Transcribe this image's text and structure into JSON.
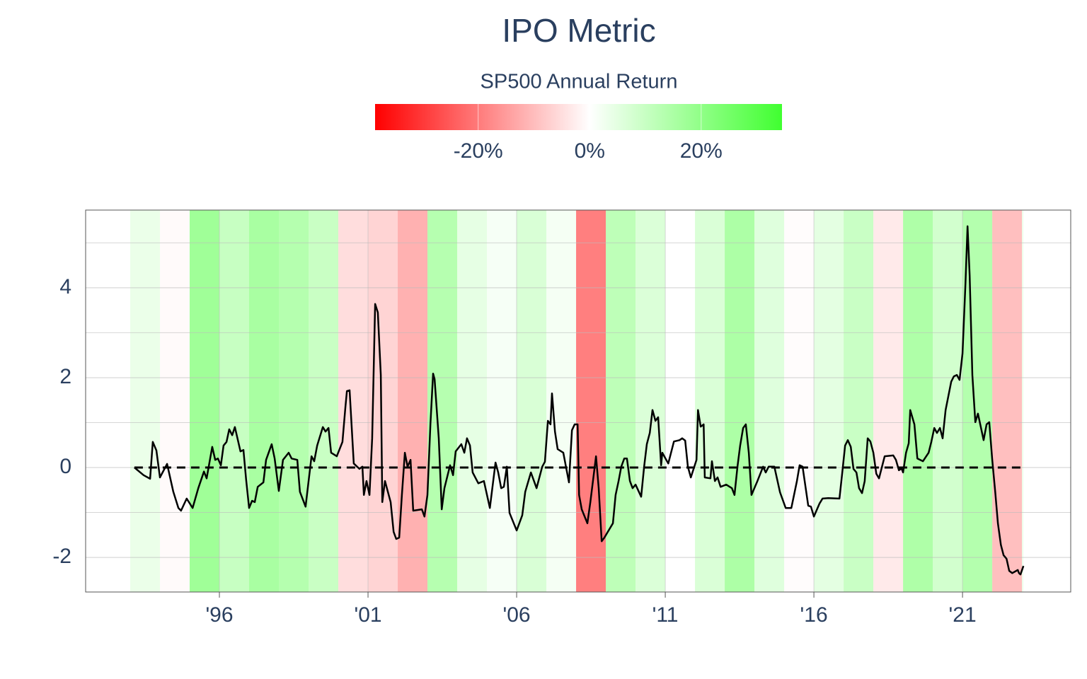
{
  "chart_data": {
    "type": "line",
    "title": "IPO Metric",
    "xlim": [
      1991.5,
      2024.64
    ],
    "xticks": [
      {
        "value": 1996,
        "label": "'96"
      },
      {
        "value": 2001,
        "label": "'01"
      },
      {
        "value": 2006,
        "label": "'06"
      },
      {
        "value": 2011,
        "label": "'11"
      },
      {
        "value": 2016,
        "label": "'16"
      },
      {
        "value": 2021,
        "label": "'21"
      }
    ],
    "ylim": [
      -2.77,
      5.73
    ],
    "yticks": [
      -2,
      0,
      2,
      4
    ],
    "y_minor_grid": [
      -1,
      1,
      3,
      5
    ],
    "grid": true,
    "hline": 0,
    "x": [
      1993.14,
      1993.45,
      1993.67,
      1993.76,
      1993.88,
      1994.0,
      1994.24,
      1994.45,
      1994.62,
      1994.71,
      1994.9,
      1995.1,
      1995.29,
      1995.48,
      1995.57,
      1995.76,
      1995.86,
      1995.95,
      1996.05,
      1996.14,
      1996.24,
      1996.33,
      1996.43,
      1996.52,
      1996.71,
      1996.81,
      1996.9,
      1997.0,
      1997.1,
      1997.19,
      1997.29,
      1997.48,
      1997.57,
      1997.76,
      1997.86,
      1998.0,
      1998.14,
      1998.33,
      1998.43,
      1998.62,
      1998.71,
      1998.9,
      1999.1,
      1999.19,
      1999.29,
      1999.48,
      1999.57,
      1999.67,
      1999.76,
      1999.95,
      2000.14,
      2000.24,
      2000.29,
      2000.38,
      2000.52,
      2000.71,
      2000.81,
      2000.86,
      2000.95,
      2001.05,
      2001.14,
      2001.24,
      2001.33,
      2001.43,
      2001.48,
      2001.57,
      2001.76,
      2001.86,
      2001.95,
      2002.05,
      2002.14,
      2002.24,
      2002.33,
      2002.43,
      2002.52,
      2002.81,
      2002.9,
      2003.0,
      2003.1,
      2003.19,
      2003.24,
      2003.38,
      2003.48,
      2003.57,
      2003.76,
      2003.86,
      2003.95,
      2004.14,
      2004.24,
      2004.33,
      2004.43,
      2004.52,
      2004.71,
      2004.9,
      2005.1,
      2005.29,
      2005.38,
      2005.48,
      2005.57,
      2005.67,
      2005.76,
      2006.0,
      2006.19,
      2006.29,
      2006.48,
      2006.67,
      2006.86,
      2006.95,
      2007.05,
      2007.14,
      2007.19,
      2007.29,
      2007.38,
      2007.57,
      2007.67,
      2007.76,
      2007.86,
      2007.95,
      2008.05,
      2008.1,
      2008.19,
      2008.38,
      2008.48,
      2008.67,
      2008.76,
      2008.86,
      2008.95,
      2009.24,
      2009.33,
      2009.43,
      2009.52,
      2009.62,
      2009.71,
      2009.81,
      2009.9,
      2010.0,
      2010.19,
      2010.29,
      2010.38,
      2010.48,
      2010.57,
      2010.67,
      2010.76,
      2010.86,
      2010.9,
      2011.1,
      2011.29,
      2011.48,
      2011.57,
      2011.67,
      2011.76,
      2011.86,
      2012.05,
      2012.1,
      2012.19,
      2012.29,
      2012.33,
      2012.52,
      2012.57,
      2012.67,
      2012.76,
      2012.86,
      2013.05,
      2013.24,
      2013.33,
      2013.43,
      2013.52,
      2013.62,
      2013.71,
      2013.81,
      2013.9,
      2014.1,
      2014.29,
      2014.38,
      2014.48,
      2014.67,
      2014.86,
      2015.05,
      2015.24,
      2015.43,
      2015.52,
      2015.62,
      2015.81,
      2015.9,
      2016.0,
      2016.19,
      2016.29,
      2016.48,
      2016.86,
      2016.95,
      2017.05,
      2017.14,
      2017.24,
      2017.33,
      2017.43,
      2017.52,
      2017.62,
      2017.71,
      2017.81,
      2017.9,
      2018.0,
      2018.1,
      2018.19,
      2018.38,
      2018.67,
      2018.76,
      2018.86,
      2018.95,
      2019.0,
      2019.1,
      2019.19,
      2019.24,
      2019.38,
      2019.48,
      2019.67,
      2019.86,
      2019.95,
      2020.05,
      2020.14,
      2020.24,
      2020.33,
      2020.43,
      2020.62,
      2020.71,
      2020.81,
      2020.9,
      2021.0,
      2021.1,
      2021.17,
      2021.24,
      2021.33,
      2021.43,
      2021.52,
      2021.71,
      2021.81,
      2021.9,
      2022.0,
      2022.1,
      2022.19,
      2022.29,
      2022.38,
      2022.48,
      2022.57,
      2022.67,
      2022.86,
      2022.9,
      2022.95,
      2023.05
    ],
    "values": [
      0,
      -0.17,
      -0.25,
      0.57,
      0.38,
      -0.22,
      0.08,
      -0.54,
      -0.9,
      -0.96,
      -0.69,
      -0.9,
      -0.46,
      -0.09,
      -0.24,
      0.46,
      0.17,
      0.2,
      0.05,
      0.49,
      0.57,
      0.85,
      0.72,
      0.9,
      0.36,
      0.39,
      -0.27,
      -0.9,
      -0.74,
      -0.77,
      -0.43,
      -0.33,
      0.17,
      0.52,
      0.2,
      -0.52,
      0.17,
      0.33,
      0.2,
      0.17,
      -0.54,
      -0.87,
      0.25,
      0.14,
      0.49,
      0.9,
      0.8,
      0.88,
      0.33,
      0.25,
      0.57,
      1.35,
      1.7,
      1.72,
      0.09,
      -0.03,
      0.02,
      -0.61,
      -0.3,
      -0.61,
      0.65,
      3.64,
      3.45,
      2.06,
      -0.77,
      -0.3,
      -0.77,
      -1.43,
      -1.59,
      -1.56,
      -0.61,
      0.33,
      0.02,
      0.17,
      -0.96,
      -0.93,
      -1.09,
      -0.61,
      0.96,
      2.09,
      1.97,
      0.65,
      -0.93,
      -0.46,
      0.05,
      -0.17,
      0.36,
      0.52,
      0.33,
      0.65,
      0.49,
      -0.11,
      -0.35,
      -0.3,
      -0.9,
      0.11,
      -0.11,
      -0.46,
      -0.43,
      0.02,
      -1.01,
      -1.4,
      -1.06,
      -0.54,
      -0.11,
      -0.46,
      0.02,
      0.13,
      1.04,
      0.96,
      1.65,
      0.8,
      0.41,
      0.33,
      -0.02,
      -0.33,
      0.83,
      0.96,
      0.96,
      -0.61,
      -0.93,
      -1.24,
      -0.77,
      0.25,
      -0.46,
      -1.64,
      -1.56,
      -1.24,
      -0.61,
      -0.3,
      0.02,
      0.2,
      0.2,
      -0.3,
      -0.46,
      -0.38,
      -0.65,
      0.02,
      0.52,
      0.77,
      1.28,
      1.04,
      1.12,
      0.05,
      0.33,
      0.09,
      0.58,
      0.61,
      0.65,
      0.6,
      0.02,
      -0.22,
      0.17,
      1.28,
      0.91,
      0.96,
      -0.22,
      -0.24,
      0.14,
      -0.3,
      -0.22,
      -0.43,
      -0.38,
      -0.46,
      -0.61,
      0.02,
      0.49,
      0.88,
      0.96,
      0.33,
      -0.61,
      -0.3,
      0.02,
      -0.11,
      0.02,
      0.02,
      -0.55,
      -0.9,
      -0.9,
      -0.3,
      0.05,
      0.02,
      -0.85,
      -0.87,
      -1.09,
      -0.8,
      -0.69,
      -0.68,
      -0.69,
      -0.14,
      0.49,
      0.61,
      0.46,
      -0.03,
      -0.11,
      -0.46,
      -0.57,
      -0.3,
      0.65,
      0.58,
      0.33,
      -0.14,
      -0.24,
      0.25,
      0.27,
      0.17,
      -0.06,
      -0.02,
      -0.11,
      0.33,
      0.54,
      1.28,
      0.96,
      0.2,
      0.14,
      0.33,
      0.57,
      0.88,
      0.77,
      0.88,
      0.65,
      1.28,
      1.91,
      2.03,
      2.06,
      1.95,
      2.54,
      4.11,
      5.37,
      4.27,
      2.06,
      1.01,
      1.2,
      0.61,
      0.96,
      1.01,
      0.17,
      -0.54,
      -1.24,
      -1.72,
      -1.95,
      -2.03,
      -2.3,
      -2.35,
      -2.28,
      -2.35,
      -2.38,
      -2.19
    ],
    "color": "#000000",
    "bands": {
      "title": "SP500 Annual Return",
      "years": [
        1993,
        1994,
        1995,
        1996,
        1997,
        1998,
        1999,
        2000,
        2001,
        2002,
        2003,
        2004,
        2005,
        2006,
        2007,
        2008,
        2009,
        2010,
        2011,
        2012,
        2013,
        2014,
        2015,
        2016,
        2017,
        2018,
        2019,
        2020,
        2021,
        2022,
        2023
      ],
      "values": [
        7.1,
        -1.5,
        34.1,
        20.3,
        31.0,
        26.7,
        19.5,
        -10.1,
        -13.0,
        -23.4,
        26.4,
        9.0,
        3.0,
        13.6,
        3.5,
        -38.5,
        23.5,
        12.8,
        0.0,
        13.4,
        29.6,
        11.4,
        -0.7,
        9.5,
        19.4,
        -6.2,
        28.9,
        16.3,
        26.9,
        -19.4,
        6.0
      ],
      "colorscale": [
        "#ff0000",
        "#ffffff",
        "#40ff30"
      ],
      "range": [
        -38.5,
        34.5
      ],
      "ticks": [
        {
          "value": -20,
          "label": "-20%"
        },
        {
          "value": 0,
          "label": "0%"
        },
        {
          "value": 20,
          "label": "20%"
        }
      ],
      "opacity": 0.5
    }
  }
}
